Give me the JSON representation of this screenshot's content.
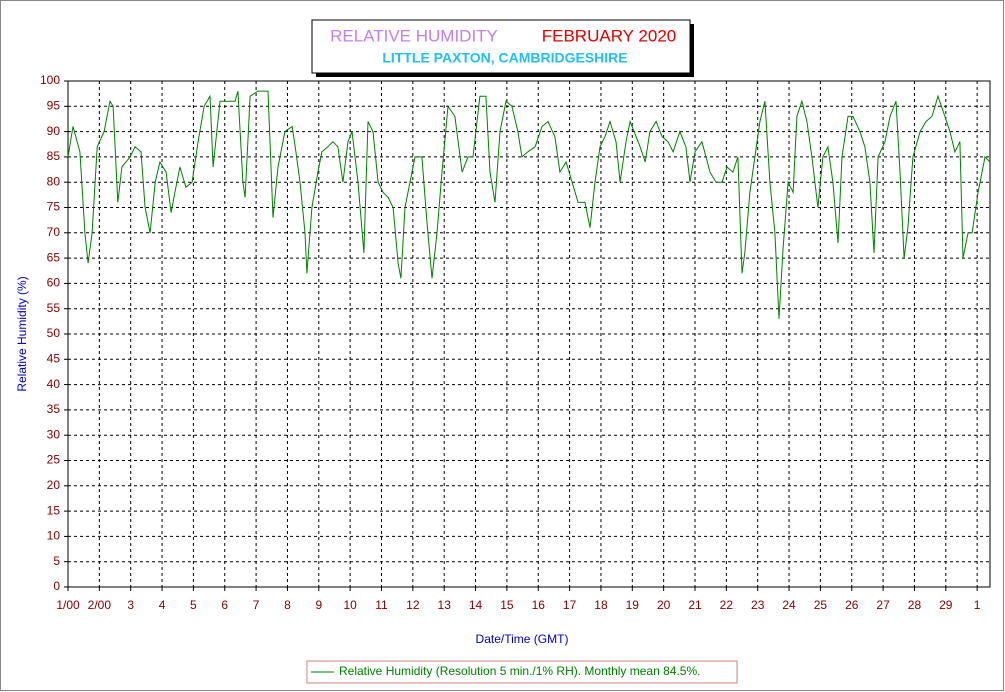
{
  "chart_data": {
    "type": "line",
    "title": "RELATIVE HUMIDITY",
    "title_month": "FEBRUARY 2020",
    "subtitle": "LITTLE PAXTON, CAMBRIDGESHIRE",
    "ylabel": "Relative Humidity (%)",
    "xlabel": "Date/Time (GMT)",
    "grid": true,
    "xlim": [
      0,
      29.41
    ],
    "ylim": [
      0,
      100
    ],
    "yticks": [
      0,
      5,
      10,
      15,
      20,
      25,
      30,
      35,
      40,
      45,
      50,
      55,
      60,
      65,
      70,
      75,
      80,
      85,
      90,
      95,
      100
    ],
    "xticks": [
      {
        "value": 0,
        "label": "1/00"
      },
      {
        "value": 1,
        "label": "2/00"
      },
      {
        "value": 2,
        "label": "3"
      },
      {
        "value": 3,
        "label": "4"
      },
      {
        "value": 4,
        "label": "5"
      },
      {
        "value": 5,
        "label": "6"
      },
      {
        "value": 6,
        "label": "7"
      },
      {
        "value": 7,
        "label": "8"
      },
      {
        "value": 8,
        "label": "9"
      },
      {
        "value": 9,
        "label": "10"
      },
      {
        "value": 10,
        "label": "11"
      },
      {
        "value": 11,
        "label": "12"
      },
      {
        "value": 12,
        "label": "13"
      },
      {
        "value": 13,
        "label": "14"
      },
      {
        "value": 14,
        "label": "15"
      },
      {
        "value": 15,
        "label": "16"
      },
      {
        "value": 16,
        "label": "17"
      },
      {
        "value": 17,
        "label": "18"
      },
      {
        "value": 18,
        "label": "19"
      },
      {
        "value": 19,
        "label": "20"
      },
      {
        "value": 20,
        "label": "21"
      },
      {
        "value": 21,
        "label": "22"
      },
      {
        "value": 22,
        "label": "23"
      },
      {
        "value": 23,
        "label": "24"
      },
      {
        "value": 24,
        "label": "25"
      },
      {
        "value": 25,
        "label": "26"
      },
      {
        "value": 26,
        "label": "27"
      },
      {
        "value": 27,
        "label": "28"
      },
      {
        "value": 28,
        "label": "29"
      },
      {
        "value": 29,
        "label": "1"
      }
    ],
    "x": [
      0,
      0.16,
      0.38,
      0.54,
      0.64,
      0.77,
      0.93,
      1.15,
      1.34,
      1.44,
      1.59,
      1.72,
      1.98,
      2.14,
      2.33,
      2.46,
      2.62,
      2.78,
      2.93,
      3.13,
      3.29,
      3.41,
      3.57,
      3.76,
      3.96,
      4.15,
      4.34,
      4.53,
      4.63,
      4.85,
      5.01,
      5.33,
      5.42,
      5.58,
      5.65,
      5.81,
      6.06,
      6.38,
      6.54,
      6.7,
      6.92,
      7.15,
      7.27,
      7.4,
      7.56,
      7.62,
      7.78,
      7.97,
      8.1,
      8.29,
      8.45,
      8.61,
      8.77,
      8.93,
      9.06,
      9.25,
      9.44,
      9.57,
      9.73,
      9.89,
      10.05,
      10.21,
      10.37,
      10.53,
      10.62,
      10.75,
      10.91,
      11.07,
      11.29,
      11.45,
      11.61,
      11.77,
      11.93,
      12.12,
      12.34,
      12.57,
      12.76,
      12.92,
      13.14,
      13.33,
      13.46,
      13.62,
      13.78,
      13.97,
      14.16,
      14.35,
      14.48,
      14.67,
      14.9,
      15.12,
      15.31,
      15.53,
      15.69,
      15.89,
      16.08,
      16.27,
      16.49,
      16.65,
      16.81,
      16.97,
      17.13,
      17.29,
      17.48,
      17.61,
      17.8,
      17.93,
      18.25,
      18.41,
      18.56,
      18.76,
      18.95,
      19.14,
      19.3,
      19.52,
      19.71,
      19.84,
      20.0,
      20.22,
      20.48,
      20.67,
      20.86,
      21.02,
      21.21,
      21.37,
      21.5,
      21.59,
      21.75,
      21.91,
      22.07,
      22.23,
      22.39,
      22.55,
      22.68,
      22.81,
      22.97,
      23.13,
      23.25,
      23.41,
      23.57,
      23.73,
      23.92,
      24.08,
      24.24,
      24.4,
      24.56,
      24.69,
      24.88,
      25.04,
      25.26,
      25.42,
      25.58,
      25.71,
      25.84,
      26.06,
      26.22,
      26.41,
      26.54,
      26.67,
      26.79,
      26.95,
      27.18,
      27.37,
      27.56,
      27.75,
      27.97,
      28.13,
      28.29,
      28.45,
      28.55,
      28.71,
      28.84,
      29.03,
      29.25,
      29.41
    ],
    "series": [
      {
        "name": "Relative Humidity (Resolution 5 min./1% RH). Monthly mean 84.5%.",
        "color": "#008000",
        "values": [
          85,
          91,
          86,
          70,
          64,
          70,
          87,
          90,
          96,
          95,
          76,
          83,
          85,
          87,
          86,
          75,
          70,
          80,
          84,
          82,
          74,
          78,
          83,
          79,
          80,
          88,
          95,
          97,
          83,
          96,
          96,
          96,
          98,
          80,
          77,
          97,
          98,
          98,
          73,
          83,
          90,
          91,
          86,
          80,
          70,
          62,
          75,
          82,
          86,
          87,
          88,
          87,
          80,
          88,
          90,
          80,
          66,
          92,
          90,
          80,
          78,
          77,
          75,
          64,
          61,
          75,
          80,
          85,
          85,
          72,
          61,
          70,
          82,
          95,
          93,
          82,
          85,
          85,
          97,
          97,
          82,
          76,
          90,
          96,
          95,
          90,
          85,
          86,
          87,
          91,
          92,
          89,
          82,
          84,
          80,
          76,
          76,
          71,
          80,
          87,
          89,
          92,
          88,
          80,
          88,
          92,
          87,
          84,
          90,
          92,
          89,
          88,
          86,
          90,
          87,
          80,
          86,
          88,
          82,
          80,
          80,
          83,
          82,
          85,
          62,
          66,
          78,
          85,
          92,
          96,
          80,
          70,
          53,
          67,
          80,
          78,
          93,
          96,
          92,
          85,
          75,
          85,
          87,
          80,
          68,
          85,
          93,
          93,
          90,
          87,
          80,
          66,
          85,
          88,
          93,
          96,
          82,
          65,
          71,
          85,
          90,
          92,
          93,
          97,
          93,
          90,
          86,
          88,
          65,
          70,
          70,
          78,
          85,
          84
        ]
      }
    ]
  }
}
